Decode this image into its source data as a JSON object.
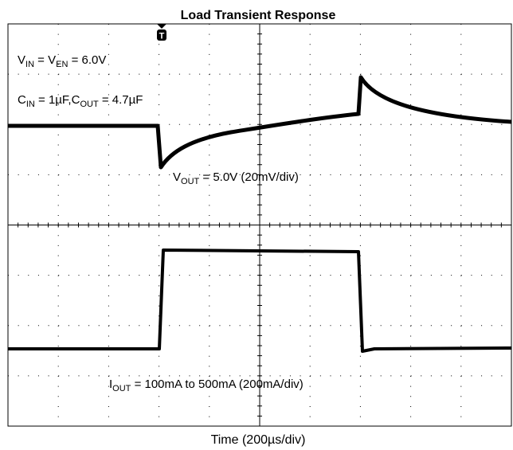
{
  "chart_data": {
    "type": "oscilloscope",
    "title": "Load Transient Response",
    "trigger": "T",
    "annotations": [
      {
        "parts": [
          {
            "text": "V"
          },
          {
            "text": "IN",
            "sub": true
          },
          {
            "text": " = V"
          },
          {
            "text": "EN",
            "sub": true
          },
          {
            "text": " = 6.0V"
          }
        ]
      },
      {
        "parts": [
          {
            "text": "C"
          },
          {
            "text": "IN",
            "sub": true
          },
          {
            "text": " = 1µF,C"
          },
          {
            "text": "OUT",
            "sub": true
          },
          {
            "text": " = 4.7µF"
          }
        ]
      },
      {
        "parts": [
          {
            "text": "V"
          },
          {
            "text": "OUT",
            "sub": true
          },
          {
            "text": " = 5.0V (20mV/div)"
          }
        ]
      },
      {
        "parts": [
          {
            "text": "I"
          },
          {
            "text": "OUT",
            "sub": true
          },
          {
            "text": " = 100mA to 500mA (200mA/div)"
          }
        ]
      }
    ],
    "xlabel": "Time (200µs/div)"
  }
}
